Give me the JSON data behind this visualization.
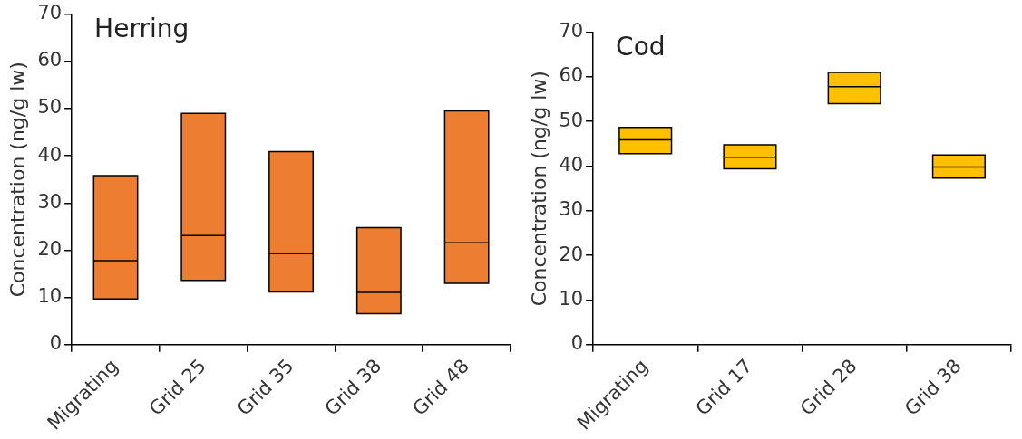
{
  "chart_data": [
    {
      "type": "box",
      "title": "Herring",
      "ylabel": "Concentration (ng/g lw)",
      "categories": [
        "Migrating",
        "Grid 25",
        "Grid 35",
        "Grid 38",
        "Grid 48"
      ],
      "color": "#ed7d31",
      "boxes": [
        {
          "low": 9.7,
          "q1": 9.7,
          "median": 17.8,
          "q3": 35.8,
          "high": 35.8
        },
        {
          "low": 13.6,
          "q1": 13.6,
          "median": 23.1,
          "q3": 49.0,
          "high": 49.0
        },
        {
          "low": 11.2,
          "q1": 11.2,
          "median": 19.3,
          "q3": 40.9,
          "high": 40.9
        },
        {
          "low": 6.6,
          "q1": 6.6,
          "median": 11.1,
          "q3": 24.8,
          "high": 24.8
        },
        {
          "low": 13.0,
          "q1": 13.0,
          "median": 21.6,
          "q3": 49.5,
          "high": 49.5
        }
      ],
      "ylim": [
        0,
        70
      ],
      "yticks": [
        0,
        10,
        20,
        30,
        40,
        50,
        60,
        70
      ],
      "grid": false,
      "legend": false
    },
    {
      "type": "box",
      "title": "Cod",
      "ylabel": "Concentration (ng/g lw)",
      "categories": [
        "Migrating",
        "Grid 17",
        "Grid 28",
        "Grid 38"
      ],
      "color": "#ffc000",
      "boxes": [
        {
          "low": 42.8,
          "q1": 42.8,
          "median": 45.9,
          "q3": 48.7,
          "high": 48.7
        },
        {
          "low": 39.4,
          "q1": 39.4,
          "median": 42.0,
          "q3": 44.8,
          "high": 44.8
        },
        {
          "low": 54.0,
          "q1": 54.0,
          "median": 57.8,
          "q3": 61.0,
          "high": 61.0
        },
        {
          "low": 37.3,
          "q1": 37.3,
          "median": 39.8,
          "q3": 42.5,
          "high": 42.5
        }
      ],
      "ylim": [
        0,
        70
      ],
      "yticks": [
        0,
        10,
        20,
        30,
        40,
        50,
        60,
        70
      ],
      "grid": false,
      "legend": false
    }
  ]
}
